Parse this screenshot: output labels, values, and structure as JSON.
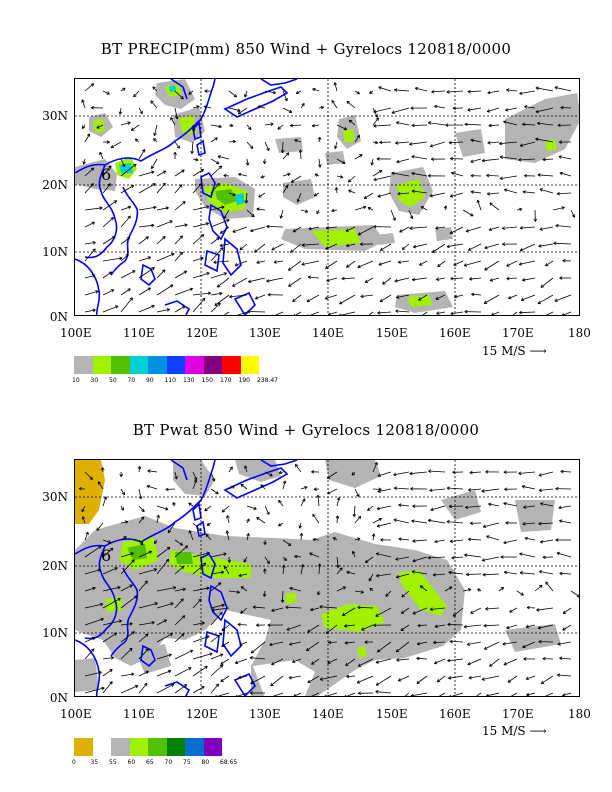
{
  "panel1": {
    "title": "BT PRECIP(mm) 850 Wind + Gyrelocs 120818/0000",
    "x_labels": [
      "100E",
      "110E",
      "120E",
      "130E",
      "140E",
      "150E",
      "160E",
      "170E",
      "180"
    ],
    "y_labels": [
      "30N",
      "20N",
      "10N",
      "0N"
    ],
    "scale_label": "15 M/S",
    "legend_colors": [
      "#b4b4b4",
      "#a0f000",
      "#50c000",
      "#00d0d0",
      "#0090e0",
      "#1040ff",
      "#e000e0",
      "#800080",
      "#ff0000",
      "#ffff00"
    ],
    "legend_labels": [
      "10",
      "30",
      "50",
      "70",
      "90",
      "110",
      "130",
      "150",
      "170",
      "190",
      "238.47"
    ],
    "gyre_marker": "6"
  },
  "panel2": {
    "title": "BT Pwat 850 Wind + Gyrelocs 120818/0000",
    "x_labels": [
      "100E",
      "110E",
      "120E",
      "130E",
      "140E",
      "150E",
      "160E",
      "170E",
      "180"
    ],
    "y_labels": [
      "30N",
      "20N",
      "10N",
      "0N"
    ],
    "scale_label": "15 M/S",
    "legend_colors": [
      "#e0b000",
      "#ffffff",
      "#b4b4b4",
      "#a0f000",
      "#50c000",
      "#008000",
      "#0070d0",
      "#8000c0"
    ],
    "legend_labels": [
      "0",
      "35",
      "55",
      "60",
      "65",
      "70",
      "75",
      "80",
      "68.65"
    ],
    "gyre_marker": "6"
  },
  "colors": {
    "coastline": "#0000ff",
    "grid": "#000000"
  }
}
